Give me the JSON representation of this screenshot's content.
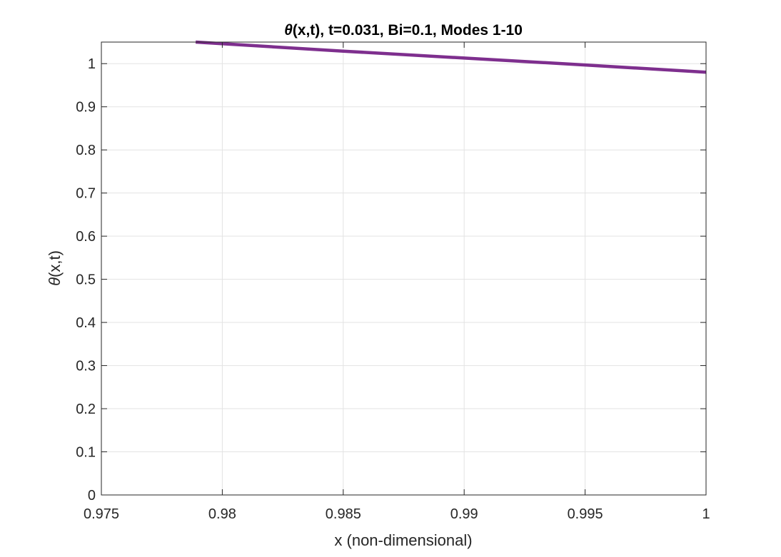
{
  "chart_data": {
    "type": "line",
    "title": "θ(x,t), t=0.031, Bi=0.1, Modes 1-10",
    "title_symbol": "θ",
    "title_rest": "(x,t), t=0.031, Bi=0.1, Modes 1-10",
    "xlabel": "x (non-dimensional)",
    "ylabel": "θ(x,t)",
    "ylabel_symbol": "θ",
    "ylabel_rest": "(x,t)",
    "xlim": [
      0.975,
      1.0
    ],
    "ylim": [
      0,
      1.05
    ],
    "xticks": [
      0.975,
      0.98,
      0.985,
      0.99,
      0.995,
      1.0
    ],
    "xtick_labels": [
      "0.975",
      "0.98",
      "0.985",
      "0.99",
      "0.995",
      "1"
    ],
    "yticks": [
      0,
      0.1,
      0.2,
      0.3,
      0.4,
      0.5,
      0.6,
      0.7,
      0.8,
      0.9,
      1.0
    ],
    "ytick_labels": [
      "0",
      "0.1",
      "0.2",
      "0.3",
      "0.4",
      "0.5",
      "0.6",
      "0.7",
      "0.8",
      "0.9",
      "1"
    ],
    "grid": true,
    "series": [
      {
        "color": "#7e2f8e",
        "x": [
          0.9789,
          0.985,
          0.99,
          0.995,
          1.0
        ],
        "y": [
          1.05,
          1.029,
          1.013,
          0.997,
          0.98
        ]
      }
    ]
  }
}
